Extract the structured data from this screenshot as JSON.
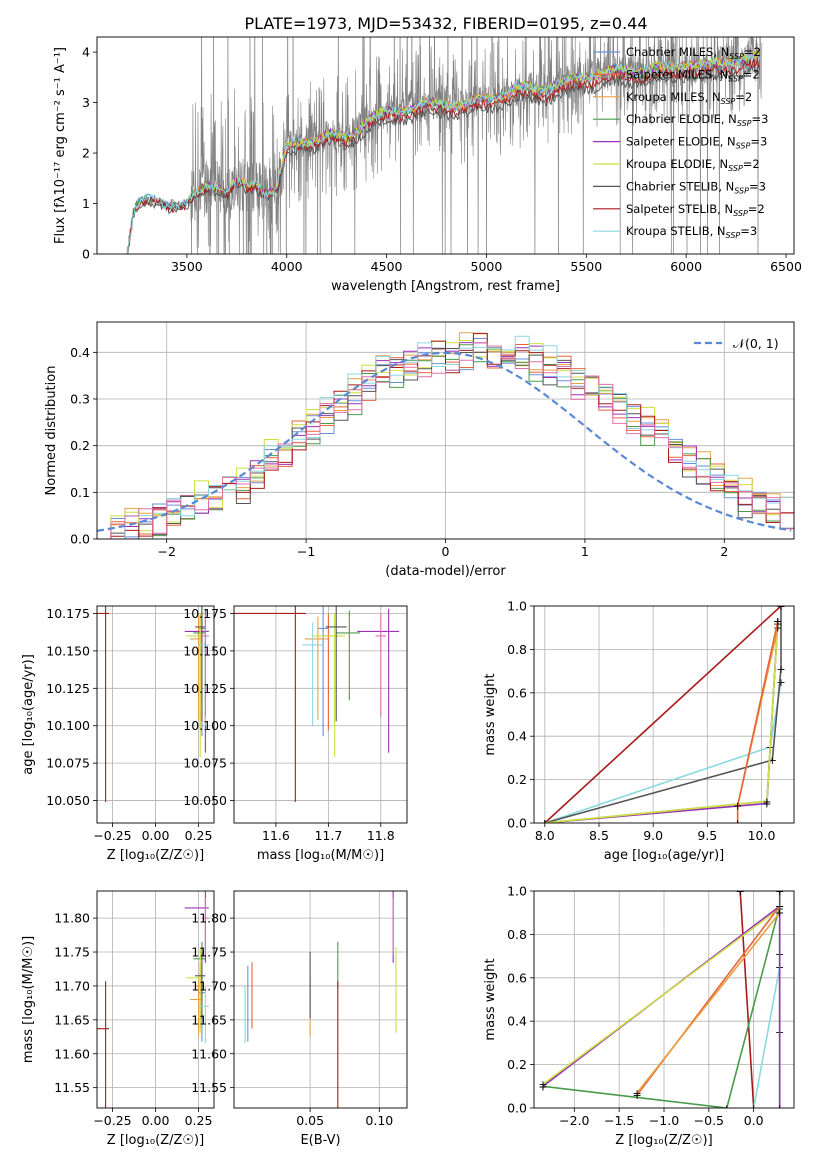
{
  "figure_title": "PLATE=1973, MJD=53432, FIBERID=0195, z=0.44",
  "colors": {
    "Chabrier MILES": "#6a8fd8",
    "Salpeter MILES": "#e8643a",
    "Kroupa MILES": "#e8a040",
    "Chabrier ELODIE": "#4a9a4a",
    "Salpeter ELODIE": "#9a30b8",
    "Kroupa ELODIE": "#cde040",
    "Chabrier STELIB": "#555555",
    "Salpeter STELIB": "#aa1a1a",
    "Kroupa STELIB": "#8ad8e0",
    "pink": "#e070a8",
    "data": "#808080"
  },
  "chart_data": [
    {
      "type": "line",
      "id": "spectrum",
      "xlabel": "wavelength [Angstrom, rest frame]",
      "ylabel": "Flux [f$_\\lambda$10$^{-17}$ erg cm$^{-2}$ s$^{-1}$ A$^{-1}$]",
      "ylabel_display": "Flux [fλ10⁻¹⁷ erg cm⁻² s⁻¹ A⁻¹]",
      "xlim": [
        3050,
        6540
      ],
      "ylim": [
        0,
        4.3
      ],
      "xticks": [
        3500,
        4000,
        4500,
        5000,
        5500,
        6000,
        6500
      ],
      "yticks": [
        0,
        1,
        2,
        3,
        4
      ],
      "legend_location": "top-right",
      "legend": [
        {
          "label": "Chabrier MILES, N",
          "sub": "SSP",
          "suffix": "=2"
        },
        {
          "label": "Salpeter MILES, N",
          "sub": "SSP",
          "suffix": "=2"
        },
        {
          "label": "Kroupa MILES, N",
          "sub": "SSP",
          "suffix": "=2"
        },
        {
          "label": "Chabrier ELODIE, N",
          "sub": "SSP",
          "suffix": "=3"
        },
        {
          "label": "Salpeter ELODIE, N",
          "sub": "SSP",
          "suffix": "=3"
        },
        {
          "label": "Kroupa ELODIE, N",
          "sub": "SSP",
          "suffix": "=2"
        },
        {
          "label": "Chabrier STELIB, N",
          "sub": "SSP",
          "suffix": "=3"
        },
        {
          "label": "Salpeter STELIB, N",
          "sub": "SSP",
          "suffix": "=2"
        },
        {
          "label": "Kroupa STELIB, N",
          "sub": "SSP",
          "suffix": "=3"
        }
      ],
      "continuum": {
        "x": [
          3200,
          3230,
          3250,
          3300,
          3400,
          3500,
          3600,
          3650,
          3700,
          3750,
          3800,
          3850,
          3900,
          3950,
          4000,
          4100,
          4200,
          4300,
          4400,
          4500,
          4600,
          4700,
          4800,
          4900,
          5000,
          5100,
          5200,
          5300,
          5400,
          5500,
          5600,
          5700,
          5800,
          5900,
          6000,
          6100,
          6200,
          6300,
          6360
        ],
        "y": [
          0,
          0.8,
          1.0,
          1.05,
          1.0,
          1.0,
          1.35,
          1.4,
          1.25,
          1.45,
          1.3,
          1.4,
          1.25,
          1.3,
          2.1,
          2.25,
          2.35,
          2.3,
          2.65,
          2.8,
          2.9,
          2.95,
          3.0,
          2.95,
          3.1,
          3.2,
          3.3,
          3.3,
          3.4,
          3.55,
          3.6,
          3.65,
          3.65,
          3.7,
          3.8,
          3.7,
          3.85,
          3.85,
          3.9
        ]
      }
    },
    {
      "type": "line",
      "id": "residuals",
      "xlabel": "(data-model)/error",
      "ylabel": "Normed distribution",
      "xlim": [
        -2.5,
        2.5
      ],
      "ylim": [
        0,
        0.465
      ],
      "xticks": [
        -2,
        -1,
        0,
        1,
        2
      ],
      "yticks": [
        0.0,
        0.1,
        0.2,
        0.3,
        0.4
      ],
      "legend_location": "top-right",
      "legend": "𝒩(0, 1)",
      "series": [
        {
          "values": [
            0.02,
            0.02,
            0.03,
            0.04,
            0.05,
            0.06,
            0.07,
            0.08,
            0.09,
            0.11,
            0.12,
            0.14,
            0.17,
            0.19,
            0.22,
            0.24,
            0.27,
            0.29,
            0.31,
            0.33,
            0.35,
            0.36,
            0.37,
            0.38,
            0.39,
            0.39,
            0.4,
            0.41,
            0.4,
            0.39,
            0.39,
            0.38,
            0.37,
            0.36,
            0.34,
            0.33,
            0.31,
            0.29,
            0.26,
            0.24,
            0.22,
            0.19,
            0.17,
            0.15,
            0.13,
            0.11,
            0.09,
            0.08,
            0.07,
            0.05
          ]
        }
      ]
    },
    {
      "type": "scatter",
      "id": "age-vs-Z",
      "xlabel": "Z [log₁₀(Z/Z☉)]",
      "ylabel": "age  [log₁₀(age/yr)]",
      "xlim": [
        -0.34,
        0.34
      ],
      "ylim": [
        10.035,
        10.18
      ],
      "xticks": [
        -0.25,
        0.0,
        0.25
      ],
      "yticks": [
        10.05,
        10.075,
        10.1,
        10.125,
        10.15,
        10.175
      ],
      "ytick_labels": [
        "10.050",
        "10.075",
        "10.100",
        "10.125",
        "10.150",
        "10.175"
      ]
    },
    {
      "type": "scatter",
      "id": "age-vs-mass",
      "xlabel": "mass [log₁₀(M/M☉)]",
      "xlim": [
        11.52,
        11.85
      ],
      "ylim": [
        10.035,
        10.18
      ],
      "xticks": [
        11.6,
        11.7,
        11.8
      ],
      "yticks": [
        10.05,
        10.075,
        10.1,
        10.125,
        10.15,
        10.175
      ],
      "ytick_labels": [
        "10.050",
        "10.075",
        "10.100",
        "10.125",
        "10.150",
        "10.175"
      ]
    },
    {
      "type": "line",
      "id": "weight-vs-age",
      "xlabel": "age  [log₁₀(age/yr)]",
      "ylabel": "mass weight",
      "xlim": [
        7.9,
        10.3
      ],
      "ylim": [
        0,
        1
      ],
      "xticks": [
        8.0,
        8.5,
        9.0,
        9.5,
        10.0
      ],
      "yticks": [
        0.0,
        0.2,
        0.4,
        0.6,
        0.8,
        1.0
      ]
    },
    {
      "type": "scatter",
      "id": "mass-vs-Z",
      "xlabel": "Z [log₁₀(Z/Z☉)]",
      "ylabel": "mass [log₁₀(M/M☉)]",
      "xlim": [
        -0.34,
        0.34
      ],
      "ylim": [
        11.52,
        11.84
      ],
      "xticks": [
        -0.25,
        0.0,
        0.25
      ],
      "yticks": [
        11.55,
        11.6,
        11.65,
        11.7,
        11.75,
        11.8
      ]
    },
    {
      "type": "scatter",
      "id": "mass-vs-EBV",
      "xlabel": "E(B-V)",
      "xlim": [
        -0.005,
        0.12
      ],
      "ylim": [
        11.52,
        11.84
      ],
      "xticks": [
        0.05,
        0.1
      ],
      "yticks": [
        11.55,
        11.6,
        11.65,
        11.7,
        11.75,
        11.8
      ]
    },
    {
      "type": "line",
      "id": "weight-vs-Z",
      "xlabel": "Z [log₁₀(Z/Z☉)]",
      "ylabel": "mass weight",
      "xlim": [
        -2.45,
        0.45
      ],
      "ylim": [
        0,
        1
      ],
      "xticks": [
        -2.0,
        -1.5,
        -1.0,
        -0.5,
        0.0
      ],
      "yticks": [
        0.0,
        0.2,
        0.4,
        0.6,
        0.8,
        1.0
      ]
    }
  ]
}
